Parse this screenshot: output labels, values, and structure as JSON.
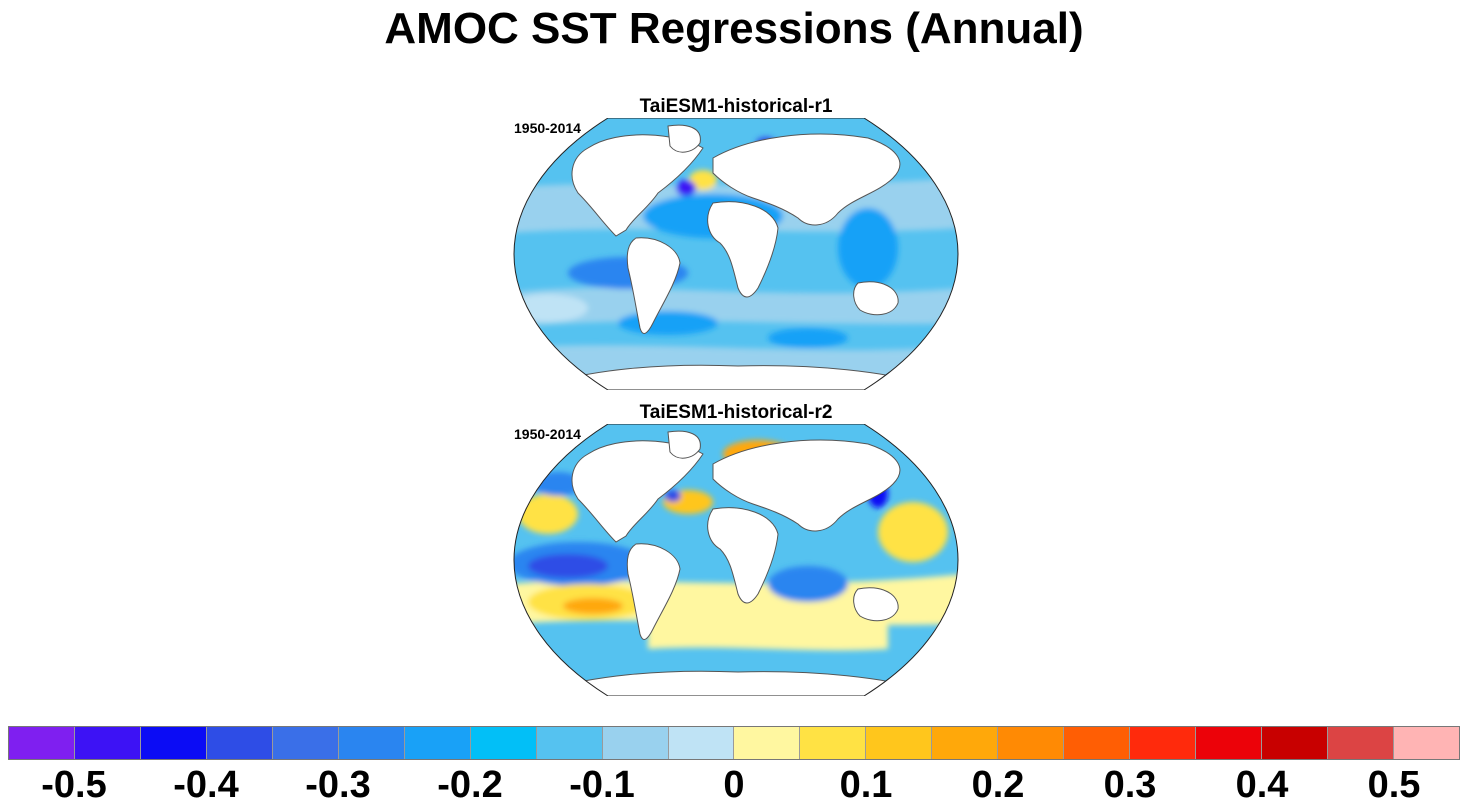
{
  "title": "AMOC SST Regressions (Annual)",
  "panels": [
    {
      "title": "TaiESM1-historical-r1",
      "period": "1950-2014"
    },
    {
      "title": "TaiESM1-historical-r2",
      "period": "1950-2014"
    }
  ],
  "colorbar": {
    "colors": [
      "#7f1ff0",
      "#3d12f5",
      "#0b0cf5",
      "#2e4de6",
      "#3a6fe8",
      "#2a85f0",
      "#19a1f7",
      "#02bff7",
      "#55c2f0",
      "#99d1ee",
      "#bfe3f5",
      "#fff7a0",
      "#ffe244",
      "#ffc61c",
      "#ffa80a",
      "#ff8a04",
      "#ff5e04",
      "#ff2a0c",
      "#ec0209",
      "#c80000",
      "#dc4444",
      "#ffb4b4"
    ],
    "labels": [
      {
        "text": "-0.5",
        "index": 1
      },
      {
        "text": "-0.4",
        "index": 3
      },
      {
        "text": "-0.3",
        "index": 5
      },
      {
        "text": "-0.2",
        "index": 7
      },
      {
        "text": "-0.1",
        "index": 9
      },
      {
        "text": "0",
        "index": 11
      },
      {
        "text": "0.1",
        "index": 13
      },
      {
        "text": "0.2",
        "index": 15
      },
      {
        "text": "0.3",
        "index": 17
      },
      {
        "text": "0.4",
        "index": 19
      },
      {
        "text": "0.5",
        "index": 21
      }
    ]
  }
}
